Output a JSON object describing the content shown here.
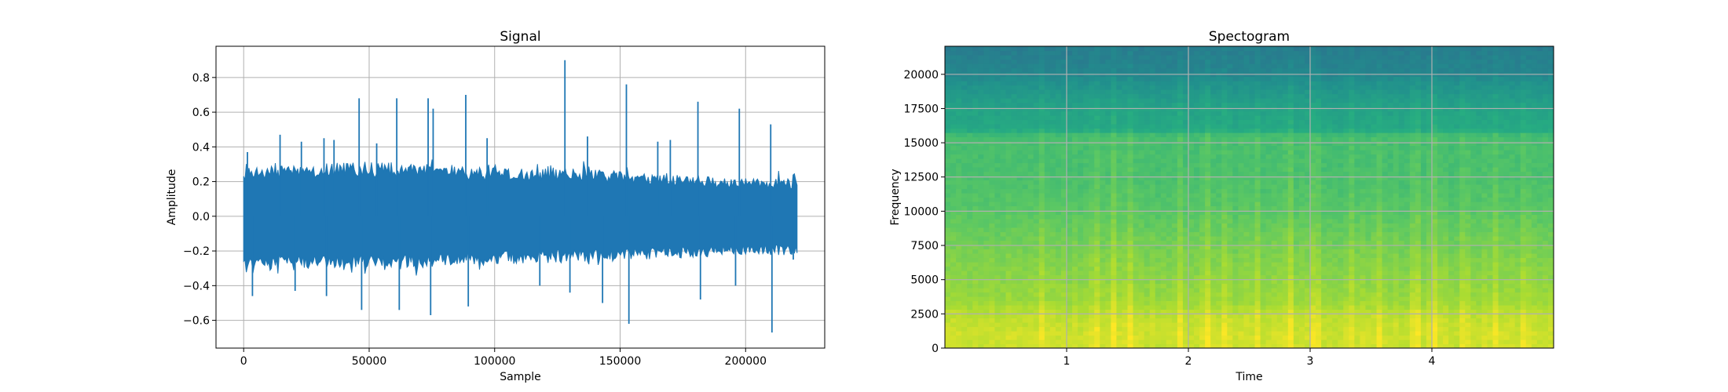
{
  "chart_data": [
    {
      "type": "line",
      "title": "Signal",
      "xlabel": "Sample",
      "ylabel": "Amplitude",
      "xlim": [
        -11025,
        231525
      ],
      "ylim": [
        -0.76,
        0.98
      ],
      "x_ticks": [
        0,
        50000,
        100000,
        150000,
        200000
      ],
      "x_tick_labels": [
        "0",
        "50000",
        "100000",
        "150000",
        "200000"
      ],
      "y_ticks": [
        -0.6,
        -0.4,
        -0.2,
        0.0,
        0.2,
        0.4,
        0.6,
        0.8
      ],
      "y_tick_labels": [
        "−0.6",
        "−0.4",
        "−0.2",
        "0.0",
        "0.2",
        "0.4",
        "0.6",
        "0.8"
      ],
      "grid": true,
      "color": "#1f77b4",
      "x_range": [
        0,
        220500
      ],
      "envelope": {
        "x": [
          0,
          20000,
          40000,
          60000,
          80000,
          100000,
          120000,
          140000,
          160000,
          180000,
          200000,
          220500
        ],
        "upper": [
          0.28,
          0.3,
          0.32,
          0.31,
          0.3,
          0.28,
          0.28,
          0.27,
          0.25,
          0.23,
          0.22,
          0.22
        ],
        "lower": [
          -0.29,
          -0.3,
          -0.31,
          -0.31,
          -0.29,
          -0.28,
          -0.27,
          -0.26,
          -0.25,
          -0.24,
          -0.22,
          -0.22
        ]
      },
      "peaks": [
        {
          "x": 1500,
          "y": 0.37
        },
        {
          "x": 3500,
          "y": -0.46
        },
        {
          "x": 14500,
          "y": 0.47
        },
        {
          "x": 20500,
          "y": -0.43
        },
        {
          "x": 23000,
          "y": 0.43
        },
        {
          "x": 32000,
          "y": 0.45
        },
        {
          "x": 33000,
          "y": -0.46
        },
        {
          "x": 36000,
          "y": 0.44
        },
        {
          "x": 46000,
          "y": 0.68
        },
        {
          "x": 47000,
          "y": -0.54
        },
        {
          "x": 53000,
          "y": 0.42
        },
        {
          "x": 61000,
          "y": 0.68
        },
        {
          "x": 62000,
          "y": -0.54
        },
        {
          "x": 73500,
          "y": 0.68
        },
        {
          "x": 74500,
          "y": -0.57
        },
        {
          "x": 75500,
          "y": 0.62
        },
        {
          "x": 88500,
          "y": 0.7
        },
        {
          "x": 89500,
          "y": -0.52
        },
        {
          "x": 97000,
          "y": 0.45
        },
        {
          "x": 118000,
          "y": -0.4
        },
        {
          "x": 128000,
          "y": 0.9
        },
        {
          "x": 130000,
          "y": -0.44
        },
        {
          "x": 137000,
          "y": 0.46
        },
        {
          "x": 143000,
          "y": -0.5
        },
        {
          "x": 152500,
          "y": 0.76
        },
        {
          "x": 153500,
          "y": -0.62
        },
        {
          "x": 165000,
          "y": 0.43
        },
        {
          "x": 170000,
          "y": 0.44
        },
        {
          "x": 181000,
          "y": 0.66
        },
        {
          "x": 182000,
          "y": -0.48
        },
        {
          "x": 196000,
          "y": -0.4
        },
        {
          "x": 197500,
          "y": 0.62
        },
        {
          "x": 210000,
          "y": 0.53
        },
        {
          "x": 210500,
          "y": -0.67
        },
        {
          "x": 219000,
          "y": -0.25
        }
      ]
    },
    {
      "type": "heatmap",
      "title": "Spectogram",
      "xlabel": "Time",
      "ylabel": "Frequency",
      "xlim": [
        0,
        5.0
      ],
      "ylim": [
        0,
        22050
      ],
      "x_ticks": [
        1,
        2,
        3,
        4
      ],
      "x_tick_labels": [
        "1",
        "2",
        "3",
        "4"
      ],
      "y_ticks": [
        0,
        2500,
        5000,
        7500,
        10000,
        12500,
        15000,
        17500,
        20000
      ],
      "y_tick_labels": [
        "0",
        "2500",
        "5000",
        "7500",
        "10000",
        "12500",
        "15000",
        "17500",
        "20000"
      ],
      "grid": true,
      "colormap": "viridis",
      "frequency_profile": {
        "frequency": [
          0,
          1000,
          2500,
          3500,
          5000,
          7500,
          10000,
          12500,
          15500,
          16000,
          17500,
          19500,
          20000,
          22050
        ],
        "level": [
          0.92,
          0.93,
          0.9,
          0.85,
          0.83,
          0.79,
          0.74,
          0.71,
          0.7,
          0.6,
          0.58,
          0.5,
          0.46,
          0.42
        ]
      },
      "transients": [
        0.8,
        1.24,
        1.39,
        1.52,
        1.93,
        2.15,
        2.31,
        2.56,
        2.84,
        3.04,
        3.33,
        3.57,
        3.87,
        4.02,
        4.27,
        4.53,
        4.76
      ]
    }
  ]
}
